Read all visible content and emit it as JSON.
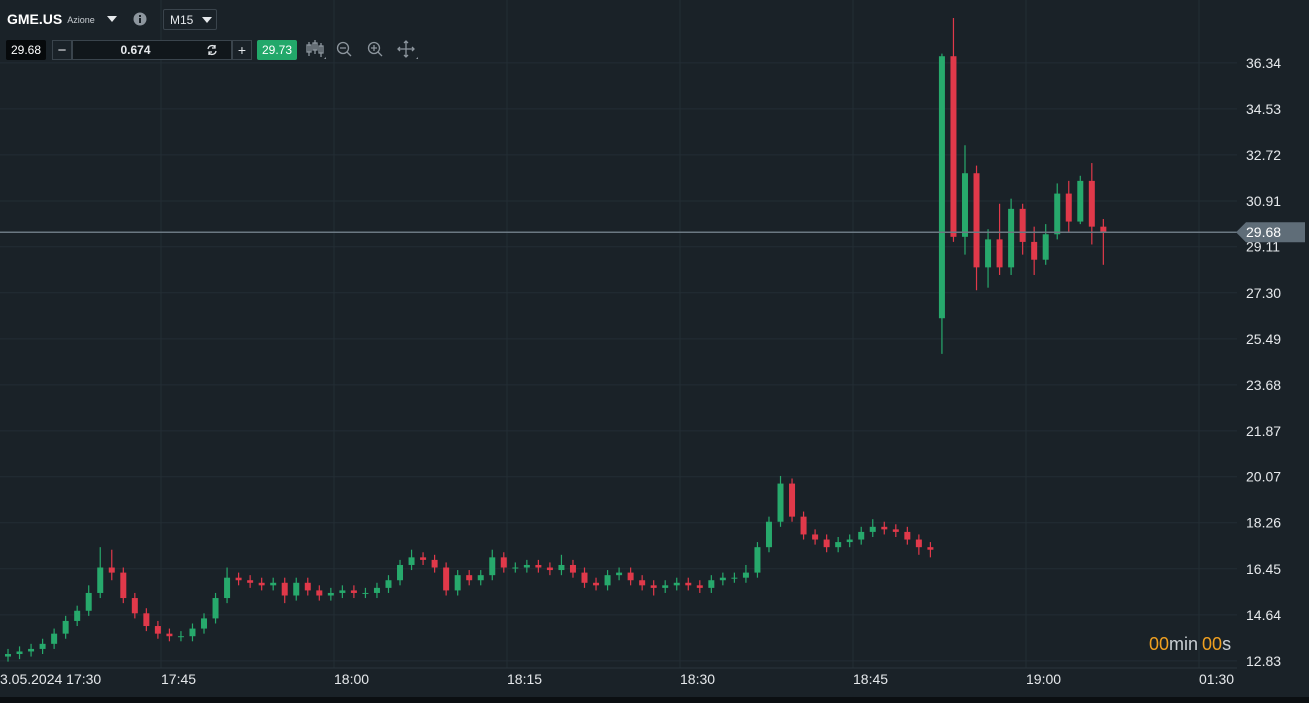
{
  "header": {
    "symbol": "GME.US",
    "kind": "Azione",
    "timeframe": "M15"
  },
  "trade": {
    "sell": 29.68,
    "volume": 0.674,
    "buy": 29.73
  },
  "chart_data": {
    "type": "candlestick",
    "open": [
      13.0,
      13.1,
      13.2,
      13.3,
      13.5,
      13.9,
      14.4,
      14.8,
      15.5,
      16.5,
      16.3,
      15.3,
      14.7,
      14.2,
      13.9,
      13.8,
      13.8,
      14.1,
      14.5,
      15.3,
      16.1,
      16.0,
      15.9,
      15.8,
      15.9,
      15.4,
      15.9,
      15.6,
      15.4,
      15.5,
      15.6,
      15.5,
      15.5,
      15.7,
      16.0,
      16.6,
      16.9,
      16.8,
      16.5,
      15.6,
      16.2,
      16.0,
      16.2,
      16.9,
      16.5,
      16.5,
      16.6,
      16.5,
      16.4,
      16.6,
      16.3,
      15.9,
      15.8,
      16.2,
      16.3,
      16.0,
      15.8,
      15.7,
      15.8,
      15.9,
      15.8,
      15.7,
      16.0,
      16.1,
      16.1,
      16.3,
      17.3,
      18.3,
      19.8,
      18.5,
      17.8,
      17.6,
      17.3,
      17.5,
      17.6,
      17.9,
      18.1,
      18.0,
      17.9,
      17.6,
      17.3,
      26.3,
      36.6,
      29.5,
      32.0,
      28.3,
      29.4,
      28.3,
      30.6,
      29.3,
      28.6,
      29.6,
      31.2,
      30.1,
      31.7,
      29.9
    ],
    "high": [
      13.3,
      13.4,
      13.5,
      13.7,
      14.1,
      14.6,
      15.0,
      15.8,
      17.3,
      17.2,
      16.5,
      15.5,
      14.9,
      14.4,
      14.1,
      14.0,
      14.3,
      14.7,
      15.5,
      16.5,
      16.3,
      16.2,
      16.1,
      16.1,
      16.1,
      16.1,
      16.1,
      15.8,
      15.7,
      15.8,
      15.8,
      15.7,
      15.9,
      16.2,
      16.8,
      17.2,
      17.1,
      17.0,
      16.7,
      16.4,
      16.4,
      16.4,
      17.2,
      17.1,
      16.7,
      16.8,
      16.8,
      16.7,
      17.0,
      16.8,
      16.5,
      16.1,
      16.4,
      16.5,
      16.5,
      16.2,
      16.0,
      16.0,
      16.1,
      16.1,
      16.0,
      16.2,
      16.3,
      16.3,
      16.6,
      17.5,
      18.5,
      20.1,
      20.0,
      18.7,
      18.0,
      17.8,
      17.7,
      17.8,
      18.1,
      18.4,
      18.3,
      18.2,
      18.1,
      17.8,
      17.5,
      36.7,
      38.1,
      33.1,
      32.3,
      29.8,
      30.8,
      31.0,
      30.8,
      29.9,
      30.0,
      31.6,
      31.7,
      31.9,
      32.4,
      30.2
    ],
    "low": [
      12.8,
      12.9,
      13.0,
      13.1,
      13.3,
      13.7,
      14.2,
      14.6,
      15.3,
      16.0,
      15.1,
      14.5,
      14.0,
      13.7,
      13.6,
      13.6,
      13.6,
      13.9,
      14.3,
      15.1,
      15.8,
      15.7,
      15.6,
      15.6,
      15.1,
      15.2,
      15.4,
      15.2,
      15.2,
      15.3,
      15.3,
      15.3,
      15.3,
      15.5,
      15.8,
      16.4,
      16.6,
      16.3,
      15.4,
      15.4,
      15.8,
      15.8,
      16.0,
      16.3,
      16.3,
      16.3,
      16.3,
      16.2,
      16.2,
      16.1,
      15.7,
      15.6,
      15.6,
      16.0,
      15.8,
      15.6,
      15.4,
      15.5,
      15.6,
      15.6,
      15.5,
      15.5,
      15.8,
      15.9,
      15.9,
      16.1,
      17.1,
      18.1,
      18.3,
      17.6,
      17.4,
      17.1,
      17.1,
      17.3,
      17.4,
      17.7,
      17.8,
      17.7,
      17.4,
      17.0,
      16.9,
      24.9,
      29.3,
      28.8,
      27.4,
      27.5,
      28.0,
      28.0,
      28.8,
      28.0,
      28.4,
      29.4,
      29.7,
      30.0,
      29.2,
      28.4
    ],
    "close": [
      13.1,
      13.2,
      13.3,
      13.5,
      13.9,
      14.4,
      14.8,
      15.5,
      16.5,
      16.3,
      15.3,
      14.7,
      14.2,
      13.9,
      13.8,
      13.8,
      14.1,
      14.5,
      15.3,
      16.1,
      16.0,
      15.9,
      15.8,
      15.9,
      15.4,
      15.9,
      15.6,
      15.4,
      15.5,
      15.6,
      15.5,
      15.5,
      15.7,
      16.0,
      16.6,
      16.9,
      16.8,
      16.5,
      15.6,
      16.2,
      16.0,
      16.2,
      16.9,
      16.5,
      16.5,
      16.6,
      16.5,
      16.4,
      16.6,
      16.3,
      15.9,
      15.8,
      16.2,
      16.3,
      16.0,
      15.8,
      15.7,
      15.8,
      15.9,
      15.8,
      15.7,
      16.0,
      16.1,
      16.1,
      16.3,
      17.3,
      18.3,
      19.8,
      18.5,
      17.8,
      17.6,
      17.3,
      17.5,
      17.6,
      17.9,
      18.1,
      18.0,
      17.9,
      17.6,
      17.3,
      17.2,
      36.6,
      29.5,
      32.0,
      28.3,
      29.4,
      28.3,
      30.6,
      29.3,
      28.6,
      29.6,
      31.2,
      30.1,
      31.7,
      29.9,
      29.68
    ],
    "up_color": "#27a96c",
    "down_color": "#e0394a",
    "ylim": [
      12.55,
      38.81
    ],
    "yticks": [
      12.83,
      14.64,
      16.45,
      18.26,
      20.07,
      21.87,
      23.68,
      25.49,
      {
        "value": 27.3,
        "label": "27.30"
      },
      29.11,
      30.91,
      32.72,
      34.53,
      36.34
    ],
    "xticks": [
      "3.05.2024 17:30",
      "17:45",
      "18:00",
      "18:15",
      "18:30",
      "18:45",
      "19:00",
      "01:30"
    ],
    "current_price": 29.68,
    "grid": true
  },
  "countdown": {
    "minutes": "00",
    "min_unit": "min",
    "seconds": "00",
    "sec_unit": "s"
  }
}
